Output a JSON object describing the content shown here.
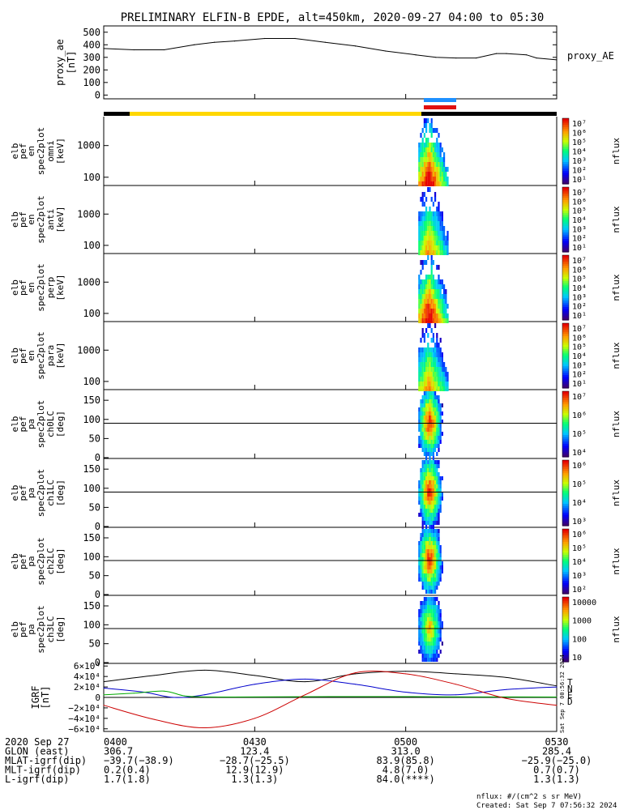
{
  "title": "PRELIMINARY ELFIN-B EPDE, alt=450km, 2020-09-27 04:00 to 05:30",
  "colors": {
    "ae_line": "#000000",
    "blue_bar": "#1e90ff",
    "red_bar": "#e01010",
    "yellow": "#ffd700",
    "black": "#000000"
  },
  "chart_data": [
    {
      "type": "line",
      "name": "proxy_ae",
      "ylabel_lines": [
        "proxy_ae",
        "[nT]"
      ],
      "legend": "proxy_AE",
      "ylim": [
        -30,
        550
      ],
      "yticks": [
        "0",
        "100",
        "200",
        "300",
        "400",
        "500"
      ],
      "ytick_values": [
        0,
        100,
        200,
        300,
        400,
        500
      ],
      "x_minutes": [
        0,
        6,
        12,
        18,
        22,
        26,
        32,
        38,
        44,
        50,
        56,
        62,
        66,
        70,
        74,
        78,
        80,
        84,
        86,
        90
      ],
      "values": [
        370,
        360,
        360,
        400,
        420,
        430,
        450,
        450,
        420,
        390,
        350,
        320,
        300,
        295,
        295,
        330,
        330,
        320,
        295,
        280
      ]
    },
    {
      "type": "heatmap",
      "name": "omni",
      "ylabel_lines": [
        "elb",
        "pef",
        "en",
        "spec2plot",
        "omni",
        "[keV]"
      ],
      "yticks": [
        "1000",
        "100"
      ],
      "colorbar_ticks": [
        "10⁷",
        "10⁶",
        "10⁵",
        "10⁴",
        "10³",
        "10²",
        "10¹"
      ],
      "colorbar_label": "nflux",
      "time_span_minutes": [
        62.5,
        68.5
      ]
    },
    {
      "type": "heatmap",
      "name": "anti",
      "ylabel_lines": [
        "elb",
        "pef",
        "en",
        "spec2plot",
        "anti",
        "[keV]"
      ],
      "yticks": [
        "1000",
        "100"
      ],
      "colorbar_ticks": [
        "10⁷",
        "10⁶",
        "10⁵",
        "10⁴",
        "10³",
        "10²",
        "10¹"
      ],
      "colorbar_label": "nflux",
      "time_span_minutes": [
        62.5,
        68.5
      ]
    },
    {
      "type": "heatmap",
      "name": "perp",
      "ylabel_lines": [
        "elb",
        "pef",
        "en",
        "spec2plot",
        "perp",
        "[keV]"
      ],
      "yticks": [
        "1000",
        "100"
      ],
      "colorbar_ticks": [
        "10⁷",
        "10⁶",
        "10⁵",
        "10⁴",
        "10³",
        "10²",
        "10¹"
      ],
      "colorbar_label": "nflux",
      "time_span_minutes": [
        62.5,
        68.5
      ]
    },
    {
      "type": "heatmap",
      "name": "para",
      "ylabel_lines": [
        "elb",
        "pef",
        "en",
        "spec2plot",
        "para",
        "[keV]"
      ],
      "yticks": [
        "1000",
        "100"
      ],
      "colorbar_ticks": [
        "10⁷",
        "10⁶",
        "10⁵",
        "10⁴",
        "10³",
        "10²",
        "10¹"
      ],
      "colorbar_label": "nflux",
      "time_span_minutes": [
        62.5,
        68.5
      ]
    },
    {
      "type": "heatmap",
      "name": "ch0LC",
      "ylabel_lines": [
        "elb",
        "pef",
        "pa",
        "spec2plot",
        "ch0LC",
        "[deg]"
      ],
      "yticks": [
        "150",
        "100",
        "50",
        "0"
      ],
      "ylim": [
        0,
        180
      ],
      "colorbar_ticks": [
        "10⁷",
        "10⁶",
        "10⁵",
        "10⁴"
      ],
      "colorbar_label": "nflux",
      "time_span_minutes": [
        62.5,
        68.5
      ]
    },
    {
      "type": "heatmap",
      "name": "ch1LC",
      "ylabel_lines": [
        "elb",
        "pef",
        "pa",
        "spec2plot",
        "ch1LC",
        "[deg]"
      ],
      "yticks": [
        "150",
        "100",
        "50",
        "0"
      ],
      "ylim": [
        0,
        180
      ],
      "colorbar_ticks": [
        "10⁶",
        "10⁵",
        "10⁴",
        "10³"
      ],
      "colorbar_label": "nflux",
      "time_span_minutes": [
        62.5,
        68.5
      ]
    },
    {
      "type": "heatmap",
      "name": "ch2LC",
      "ylabel_lines": [
        "elb",
        "pef",
        "pa",
        "spec2plot",
        "ch2LC",
        "[deg]"
      ],
      "yticks": [
        "150",
        "100",
        "50",
        "0"
      ],
      "ylim": [
        0,
        180
      ],
      "colorbar_ticks": [
        "10⁶",
        "10⁵",
        "10⁴",
        "10³",
        "10²"
      ],
      "colorbar_label": "nflux",
      "time_span_minutes": [
        62.5,
        68.5
      ]
    },
    {
      "type": "heatmap",
      "name": "ch3LC",
      "ylabel_lines": [
        "elb",
        "pef",
        "pa",
        "spec2plot",
        "ch3LC",
        "[deg]"
      ],
      "yticks": [
        "150",
        "100",
        "50",
        "0"
      ],
      "ylim": [
        0,
        180
      ],
      "colorbar_ticks": [
        "10000",
        "1000",
        "100",
        "10"
      ],
      "colorbar_label": "nflux",
      "time_span_minutes": [
        62.5,
        68.5
      ]
    },
    {
      "type": "line",
      "name": "IGRF",
      "ylabel_lines": [
        "IGRF",
        "[nT]"
      ],
      "ylim": [
        -65000,
        65000
      ],
      "yticks": [
        "6×10⁴",
        "4×10⁴",
        "2×10⁴",
        "0",
        "−2×10⁴",
        "−4×10⁴",
        "−6×10⁴"
      ],
      "ytick_values": [
        60000,
        40000,
        20000,
        0,
        -20000,
        -40000,
        -60000
      ],
      "legend": [
        "T",
        "N",
        "E",
        "D"
      ],
      "series": [
        {
          "name": "T",
          "color": "#000000",
          "x": [
            0,
            10,
            20,
            30,
            40,
            50,
            60,
            70,
            80,
            90
          ],
          "values": [
            30000,
            42000,
            52000,
            42000,
            30000,
            45000,
            50000,
            45000,
            38000,
            22000
          ]
        },
        {
          "name": "N",
          "color": "#0000cc",
          "x": [
            0,
            8,
            14,
            20,
            30,
            40,
            50,
            60,
            70,
            80,
            90
          ],
          "values": [
            18000,
            10000,
            0,
            5000,
            25000,
            35000,
            25000,
            10000,
            5000,
            15000,
            20000
          ]
        },
        {
          "name": "E",
          "color": "#00aa00",
          "x": [
            0,
            6,
            12,
            16,
            20,
            30,
            45,
            60,
            75,
            90
          ],
          "values": [
            5000,
            8000,
            12000,
            3000,
            1000,
            1000,
            1500,
            1500,
            1000,
            800
          ]
        },
        {
          "name": "D",
          "color": "#cc0000",
          "x": [
            0,
            10,
            20,
            30,
            40,
            50,
            60,
            70,
            80,
            90
          ],
          "values": [
            -15000,
            -42000,
            -58000,
            -40000,
            5000,
            47000,
            45000,
            25000,
            -2000,
            -15000
          ]
        }
      ]
    }
  ],
  "x_ticks": [
    "0400",
    "0430",
    "0500",
    "0530"
  ],
  "x_tick_minutes": [
    0,
    30,
    60,
    90
  ],
  "footer_rows": [
    {
      "label": "2020 Sep 27",
      "values": [
        "0400",
        "0430",
        "0500",
        "0530"
      ]
    },
    {
      "label": "GLON (east)",
      "values": [
        "306.7",
        "123.4",
        "313.0",
        "285.4"
      ]
    },
    {
      "label": "MLAT-igrf(dip)",
      "values": [
        "−39.7(−38.9)",
        "−28.7(−25.5)",
        "83.9(85.8)",
        "−25.9(−25.0)"
      ]
    },
    {
      "label": "MLT-igrf(dip)",
      "values": [
        "0.2(0.4)",
        "12.9(12.9)",
        "4.8(7.0)",
        "0.7(0.7)"
      ]
    },
    {
      "label": "L-igrf(dip)",
      "values": [
        "1.7(1.8)",
        "1.3(1.3)",
        "84.0(****)",
        "1.3(1.3)"
      ]
    }
  ],
  "units_note": "nflux: #/(cm^2 s sr MeV)",
  "created": "Created: Sat Sep  7 07:56:32 2024",
  "side_stamp": "Sat Sep  7 00:56:32 2024"
}
